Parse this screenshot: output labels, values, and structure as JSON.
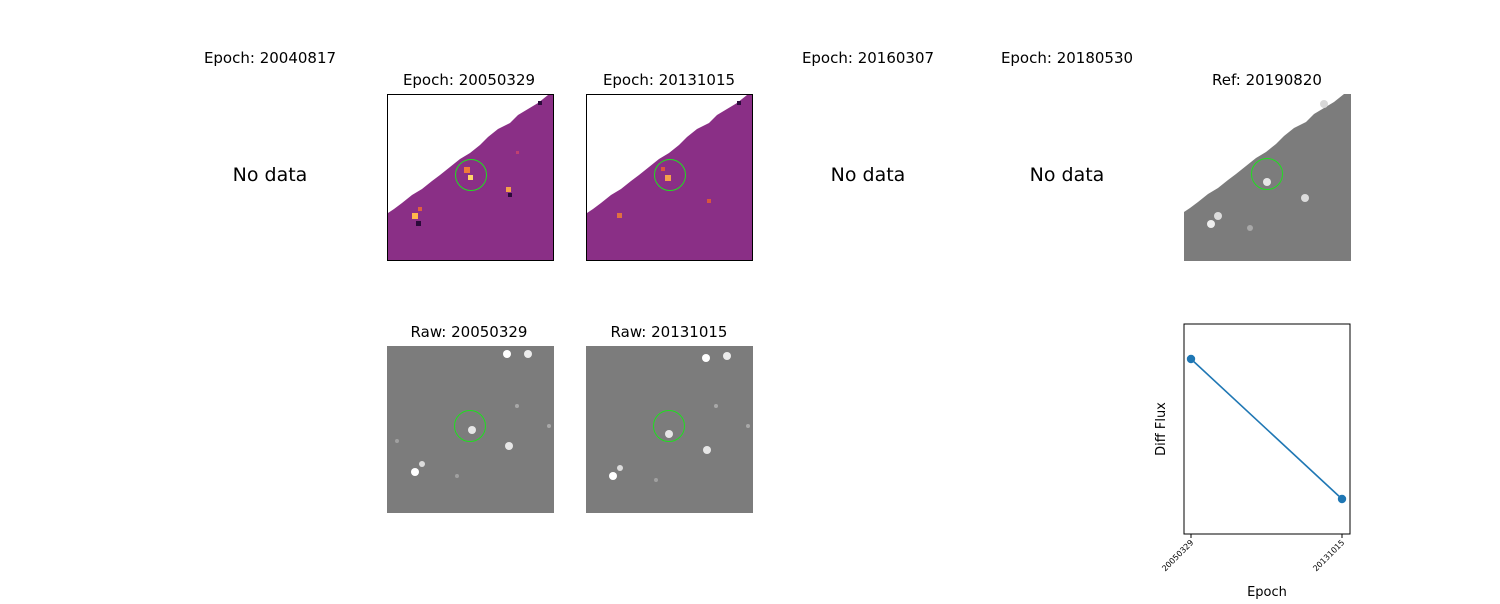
{
  "epochs": [
    {
      "title": "Epoch: 20040817",
      "status": "No data"
    },
    {
      "title": "Epoch: 20050329"
    },
    {
      "title": "Epoch: 20131015"
    },
    {
      "title": "Epoch: 20160307",
      "status": "No data"
    },
    {
      "title": "Epoch: 20180530",
      "status": "No data"
    }
  ],
  "ref": {
    "title": "Ref: 20190820"
  },
  "raw": [
    {
      "title": "Raw: 20050329"
    },
    {
      "title": "Raw: 20131015"
    }
  ],
  "colors": {
    "diff_bg": "#8a2f86",
    "raw_bg": "#7c7c7c",
    "circle": "#1ee01e",
    "series": "#1f77b4"
  },
  "chart_data": {
    "type": "line",
    "xlabel": "Epoch",
    "ylabel": "Diff Flux",
    "categories": [
      "20050329",
      "20131015"
    ],
    "series": [
      {
        "values": [
          1.0,
          0.0
        ]
      }
    ],
    "y_ticks_shown": false
  }
}
